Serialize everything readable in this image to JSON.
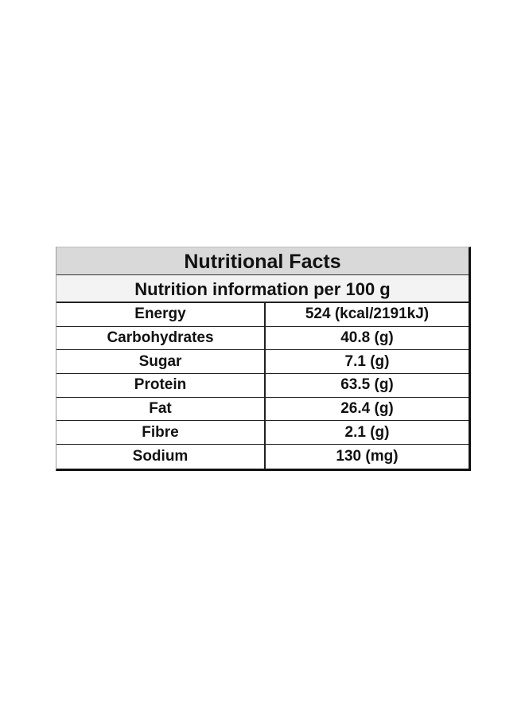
{
  "table": {
    "title": "Nutritional Facts",
    "subtitle": "Nutrition information per 100 g",
    "rows": [
      [
        "Energy",
        "524 (kcal/2191kJ)"
      ],
      [
        "Carbohydrates",
        "40.8 (g)"
      ],
      [
        "Sugar",
        "7.1 (g)"
      ],
      [
        "Protein",
        "63.5 (g)"
      ],
      [
        "Fat",
        "26.4 (g)"
      ],
      [
        "Fibre",
        "2.1 (g)"
      ],
      [
        "Sodium",
        "130 (mg)"
      ]
    ]
  }
}
